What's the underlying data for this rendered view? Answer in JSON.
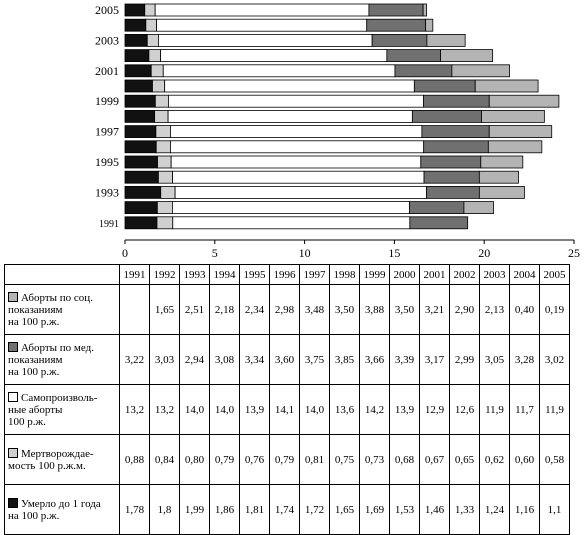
{
  "chart_data": {
    "type": "bar",
    "orientation": "horizontal",
    "stacked": true,
    "years": [
      "1991",
      "1992",
      "1993",
      "1994",
      "1995",
      "1996",
      "1997",
      "1998",
      "1999",
      "2000",
      "2001",
      "2002",
      "2003",
      "2004",
      "2005"
    ],
    "y_tick_labels": [
      "1991",
      "1993",
      "1995",
      "1997",
      "1999",
      "2001",
      "2003",
      "2005"
    ],
    "x_ticks": [
      0,
      5,
      10,
      15,
      20,
      25
    ],
    "xlim": [
      0,
      25
    ],
    "series": [
      {
        "name": "Умерло  до 1 года на 100 р.ж.",
        "color": "#111111",
        "values": [
          1.78,
          1.8,
          1.99,
          1.86,
          1.81,
          1.74,
          1.72,
          1.65,
          1.69,
          1.53,
          1.46,
          1.33,
          1.24,
          1.16,
          1.1
        ]
      },
      {
        "name": "Мертворождае-мость  100 р.ж.м.",
        "color": "#d0d0d0",
        "values": [
          0.88,
          0.84,
          0.8,
          0.79,
          0.76,
          0.79,
          0.81,
          0.75,
          0.73,
          0.68,
          0.67,
          0.65,
          0.62,
          0.6,
          0.58
        ]
      },
      {
        "name": "Самопроизволь-ные аборты  100 р.ж.",
        "color": "#ffffff",
        "values": [
          13.2,
          13.2,
          14.0,
          14.0,
          13.9,
          14.1,
          14.0,
          13.6,
          14.2,
          13.9,
          12.9,
          12.6,
          11.9,
          11.7,
          11.9
        ]
      },
      {
        "name": "Аборты  по мед. показаниям на 100 р.ж.",
        "color": "#707070",
        "values": [
          3.22,
          3.03,
          2.94,
          3.08,
          3.34,
          3.6,
          3.75,
          3.85,
          3.66,
          3.39,
          3.17,
          2.99,
          3.05,
          3.28,
          3.02
        ]
      },
      {
        "name": "Аборты  по соц. показаниям на 100 р.ж.",
        "color": "#b4b4b4",
        "values": [
          null,
          1.65,
          2.51,
          2.18,
          2.34,
          2.98,
          3.48,
          3.5,
          3.88,
          3.5,
          3.21,
          2.9,
          2.13,
          0.4,
          0.19
        ]
      }
    ]
  },
  "table": {
    "years": [
      "1991",
      "1992",
      "1993",
      "1994",
      "1995",
      "1996",
      "1997",
      "1998",
      "1999",
      "2000",
      "2001",
      "2002",
      "2003",
      "2004",
      "2005"
    ],
    "rows": [
      {
        "label": "Аборты  по соц.\nпоказаниям\nна 100 р.ж.",
        "color": "#b4b4b4",
        "cells": [
          "",
          "1,65",
          "2,51",
          "2,18",
          "2,34",
          "2,98",
          "3,48",
          "3,50",
          "3,88",
          "3,50",
          "3,21",
          "2,90",
          "2,13",
          "0,40",
          "0,19"
        ]
      },
      {
        "label": "Аборты  по мед.\nпоказаниям\nна 100 р.ж.",
        "color": "#707070",
        "cells": [
          "3,22",
          "3,03",
          "2,94",
          "3,08",
          "3,34",
          "3,60",
          "3,75",
          "3,85",
          "3,66",
          "3,39",
          "3,17",
          "2,99",
          "3,05",
          "3,28",
          "3,02"
        ]
      },
      {
        "label": "Самопроизволь-\nные  аборты\n100 р.ж.",
        "color": "#ffffff",
        "cells": [
          "13,2",
          "13,2",
          "14,0",
          "14,0",
          "13,9",
          "14,1",
          "14,0",
          "13,6",
          "14,2",
          "13,9",
          "12,9",
          "12,6",
          "11,9",
          "11,7",
          "11,9"
        ]
      },
      {
        "label": "Мертворождае-\nмость  100 р.ж.м.",
        "color": "#d0d0d0",
        "cells": [
          "0,88",
          "0,84",
          "0,80",
          "0,79",
          "0,76",
          "0,79",
          "0,81",
          "0,75",
          "0,73",
          "0,68",
          "0,67",
          "0,65",
          "0,62",
          "0,60",
          "0,58"
        ]
      },
      {
        "label": "Умерло  до 1 года\nна 100 р.ж.",
        "color": "#111111",
        "cells": [
          "1,78",
          "1,8",
          "1,99",
          "1,86",
          "1,81",
          "1,74",
          "1,72",
          "1,65",
          "1,69",
          "1,53",
          "1,46",
          "1,33",
          "1,24",
          "1,16",
          "1,1"
        ]
      }
    ]
  }
}
